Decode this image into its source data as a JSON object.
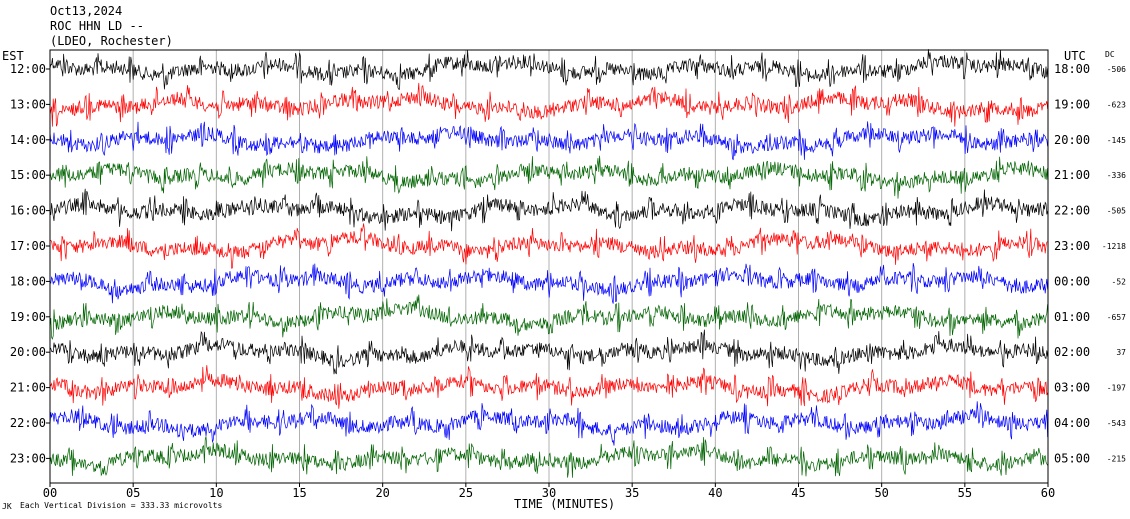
{
  "header": {
    "line1": "Oct13,2024",
    "line2": "ROC HHN LD --",
    "line3": "(LDEO, Rochester)"
  },
  "left_axis_label": "EST",
  "right_axis_label": "UTC",
  "dc_label": "DC",
  "footer": {
    "corner_mark": "JK",
    "scale_text": "Each Vertical Division =  333.33 microvolts"
  },
  "colors": {
    "black": "#000000",
    "red": "#ff0000",
    "blue": "#0000ff",
    "green": "#006400",
    "grid": "#b0b0b0"
  },
  "chart_data": {
    "type": "line",
    "title": "Oct13,2024",
    "xlabel": "TIME (MINUTES)",
    "ylabel": "",
    "x_ticks": [
      "00",
      "05",
      "10",
      "15",
      "20",
      "25",
      "30",
      "35",
      "40",
      "45",
      "50",
      "55",
      "60"
    ],
    "xlim": [
      0,
      60
    ],
    "grid": "vertical lines every 5 minutes",
    "rows": [
      {
        "est": "12:00",
        "utc": "18:00",
        "dc": "-506",
        "color": "black"
      },
      {
        "est": "13:00",
        "utc": "19:00",
        "dc": "-623",
        "color": "red"
      },
      {
        "est": "14:00",
        "utc": "20:00",
        "dc": "-145",
        "color": "blue"
      },
      {
        "est": "15:00",
        "utc": "21:00",
        "dc": "-336",
        "color": "green"
      },
      {
        "est": "16:00",
        "utc": "22:00",
        "dc": "-505",
        "color": "black"
      },
      {
        "est": "17:00",
        "utc": "23:00",
        "dc": "-1218",
        "color": "red"
      },
      {
        "est": "18:00",
        "utc": "00:00",
        "dc": "-52",
        "color": "blue"
      },
      {
        "est": "19:00",
        "utc": "01:00",
        "dc": "-657",
        "color": "green"
      },
      {
        "est": "20:00",
        "utc": "02:00",
        "dc": "37",
        "color": "black"
      },
      {
        "est": "21:00",
        "utc": "03:00",
        "dc": "-197",
        "color": "red"
      },
      {
        "est": "22:00",
        "utc": "04:00",
        "dc": "-543",
        "color": "blue"
      },
      {
        "est": "23:00",
        "utc": "05:00",
        "dc": "-215",
        "color": "green"
      }
    ]
  }
}
